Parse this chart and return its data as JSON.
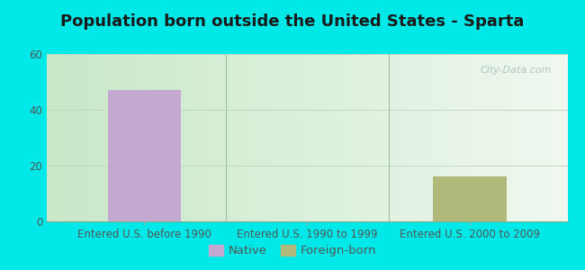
{
  "title": "Population born outside the United States - Sparta",
  "categories": [
    "Entered U.S. before 1990",
    "Entered U.S. 1990 to 1999",
    "Entered U.S. 2000 to 2009"
  ],
  "native_values": [
    47,
    0,
    0
  ],
  "foreign_values": [
    0,
    0,
    16
  ],
  "native_color": "#c4a8d0",
  "foreign_color": "#b0b87a",
  "bg_color": "#00e8e8",
  "plot_bg_left": "#c8e8c8",
  "plot_bg_right": "#f0f8f0",
  "ylim": [
    0,
    60
  ],
  "yticks": [
    0,
    20,
    40,
    60
  ],
  "bar_width": 0.45,
  "title_fontsize": 13,
  "tick_fontsize": 8.5,
  "legend_fontsize": 9.5,
  "watermark": "City-Data.com",
  "grid_color": "#c0d8c0",
  "divider_color": "#a0c0a0"
}
